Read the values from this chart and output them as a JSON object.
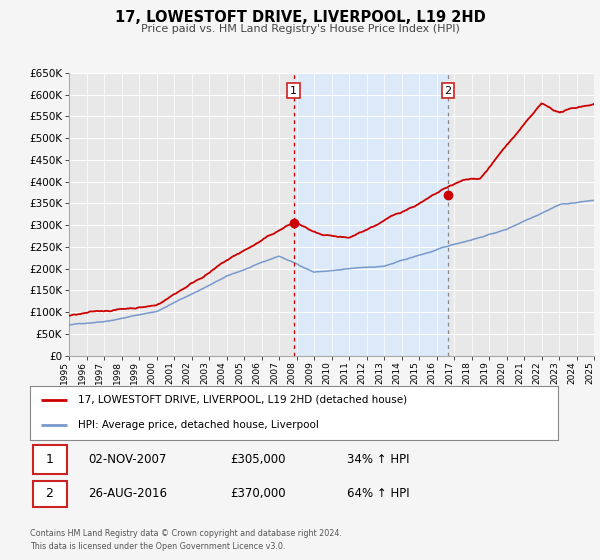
{
  "title": "17, LOWESTOFT DRIVE, LIVERPOOL, L19 2HD",
  "subtitle": "Price paid vs. HM Land Registry's House Price Index (HPI)",
  "legend_label_red": "17, LOWESTOFT DRIVE, LIVERPOOL, L19 2HD (detached house)",
  "legend_label_blue": "HPI: Average price, detached house, Liverpool",
  "sale1_date": "02-NOV-2007",
  "sale1_price": "£305,000",
  "sale1_hpi": "34% ↑ HPI",
  "sale2_date": "26-AUG-2016",
  "sale2_price": "£370,000",
  "sale2_hpi": "64% ↑ HPI",
  "footer1": "Contains HM Land Registry data © Crown copyright and database right 2024.",
  "footer2": "This data is licensed under the Open Government Licence v3.0.",
  "ylim": [
    0,
    650000
  ],
  "yticks": [
    0,
    50000,
    100000,
    150000,
    200000,
    250000,
    300000,
    350000,
    400000,
    450000,
    500000,
    550000,
    600000,
    650000
  ],
  "background_color": "#f5f5f5",
  "plot_bg_color": "#e8e8e8",
  "shade_color": "#dce9f8",
  "grid_color": "#ffffff",
  "red_color": "#cc0000",
  "blue_color": "#7799cc",
  "sale1_x": 2007.83,
  "sale2_x": 2016.65,
  "vline1_x": 2007.83,
  "vline2_x": 2016.65,
  "xmin": 1995,
  "xmax": 2025
}
